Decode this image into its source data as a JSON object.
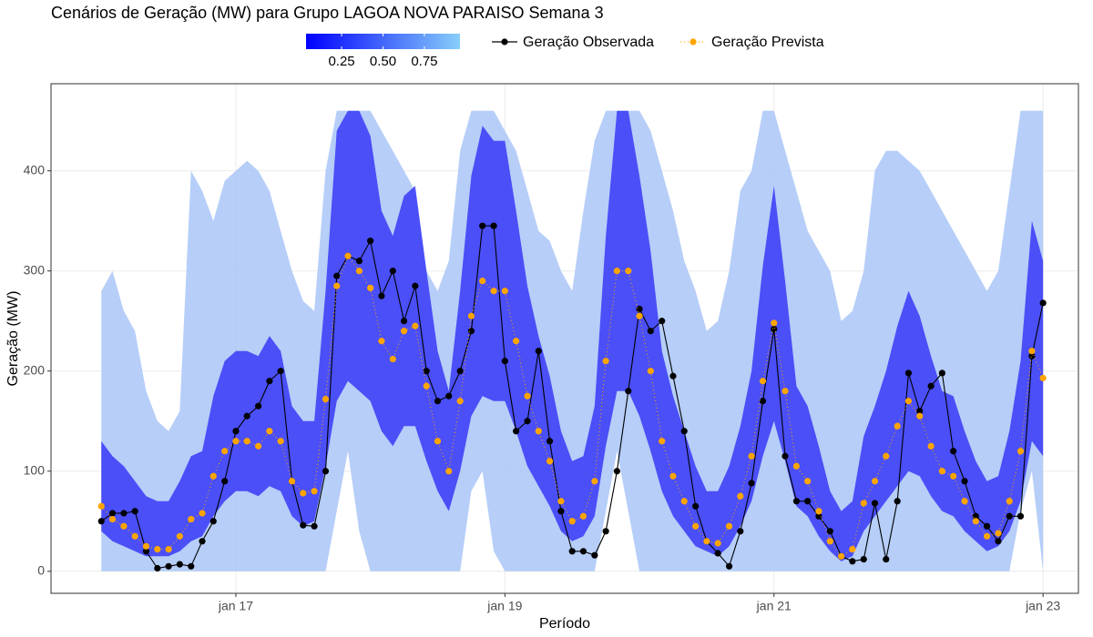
{
  "chart_data": {
    "type": "line",
    "title": "Cenários de Geração (MW) para Grupo LAGOA NOVA PARAISO Semana 3",
    "x_label": "Período",
    "y_label": "Geração (MW)",
    "xlim": [
      15.626,
      23.263
    ],
    "ylim": [
      -22,
      487
    ],
    "xticks": [
      {
        "value": 17,
        "label": "jan 17"
      },
      {
        "value": 19,
        "label": "jan 19"
      },
      {
        "value": 21,
        "label": "jan 21"
      },
      {
        "value": 23,
        "label": "jan 23"
      }
    ],
    "yticks": [
      0,
      100,
      200,
      300,
      400
    ],
    "grid": true,
    "legend": "top",
    "colorbar": {
      "lim": [
        0.035,
        0.965
      ],
      "ticks": [
        0.25,
        {
          "value": 0.5,
          "label": "0.50"
        },
        0.75
      ],
      "colors": [
        "#0000ff",
        "#87cefa"
      ]
    },
    "x": [
      16,
      16.083,
      16.167,
      16.25,
      16.333,
      16.417,
      16.5,
      16.583,
      16.667,
      16.75,
      16.833,
      16.917,
      17,
      17.083,
      17.167,
      17.25,
      17.333,
      17.417,
      17.5,
      17.583,
      17.667,
      17.75,
      17.833,
      17.917,
      18,
      18.083,
      18.167,
      18.25,
      18.333,
      18.417,
      18.5,
      18.583,
      18.667,
      18.75,
      18.833,
      18.917,
      19,
      19.083,
      19.167,
      19.25,
      19.333,
      19.417,
      19.5,
      19.583,
      19.667,
      19.75,
      19.833,
      19.917,
      20,
      20.083,
      20.167,
      20.25,
      20.333,
      20.417,
      20.5,
      20.583,
      20.667,
      20.75,
      20.833,
      20.917,
      21,
      21.083,
      21.167,
      21.25,
      21.333,
      21.417,
      21.5,
      21.583,
      21.667,
      21.75,
      21.833,
      21.917,
      22,
      22.083,
      22.167,
      22.25,
      22.333,
      22.417,
      22.5,
      22.583,
      22.667,
      22.75,
      22.833,
      22.917,
      23
    ],
    "bands": [
      {
        "color": "#a9c6f7",
        "lower": [
          0,
          0,
          0,
          0,
          0,
          0,
          0,
          0,
          0,
          0,
          0,
          0,
          0,
          0,
          0,
          0,
          0,
          0,
          0,
          0,
          0,
          60,
          120,
          40,
          0,
          0,
          0,
          0,
          0,
          0,
          0,
          0,
          0,
          80,
          100,
          20,
          0,
          0,
          0,
          0,
          0,
          0,
          0,
          0,
          0,
          60,
          120,
          60,
          0,
          0,
          0,
          0,
          0,
          0,
          0,
          0,
          0,
          0,
          0,
          0,
          0,
          0,
          0,
          0,
          0,
          0,
          0,
          0,
          0,
          0,
          0,
          0,
          0,
          0,
          0,
          0,
          0,
          0,
          0,
          0,
          0,
          0,
          60,
          100,
          0
        ],
        "upper": [
          280,
          300,
          260,
          240,
          180,
          150,
          140,
          160,
          400,
          380,
          350,
          390,
          400,
          410,
          400,
          380,
          340,
          300,
          270,
          260,
          400,
          460,
          460,
          460,
          460,
          440,
          420,
          400,
          380,
          300,
          280,
          310,
          420,
          460,
          460,
          460,
          440,
          420,
          380,
          340,
          330,
          300,
          280,
          360,
          430,
          460,
          460,
          460,
          460,
          440,
          400,
          360,
          310,
          280,
          240,
          250,
          300,
          380,
          400,
          460,
          460,
          420,
          380,
          340,
          320,
          300,
          250,
          260,
          300,
          400,
          420,
          420,
          410,
          400,
          380,
          360,
          340,
          320,
          300,
          280,
          300,
          380,
          460,
          460,
          460
        ]
      },
      {
        "color": "#2f2ff8",
        "lower": [
          40,
          30,
          25,
          20,
          15,
          15,
          15,
          20,
          30,
          35,
          55,
          70,
          80,
          80,
          75,
          85,
          80,
          55,
          45,
          50,
          105,
          170,
          190,
          180,
          170,
          140,
          125,
          145,
          145,
          110,
          80,
          60,
          100,
          155,
          175,
          170,
          170,
          140,
          105,
          85,
          65,
          40,
          30,
          35,
          55,
          125,
          180,
          180,
          155,
          120,
          80,
          55,
          40,
          25,
          20,
          15,
          25,
          45,
          70,
          115,
          150,
          110,
          65,
          55,
          35,
          20,
          10,
          15,
          40,
          55,
          70,
          85,
          100,
          95,
          75,
          60,
          55,
          40,
          30,
          20,
          25,
          40,
          70,
          130,
          115
        ],
        "upper": [
          130,
          115,
          105,
          90,
          75,
          70,
          70,
          90,
          115,
          120,
          175,
          210,
          220,
          220,
          215,
          235,
          220,
          165,
          150,
          150,
          280,
          440,
          460,
          460,
          435,
          360,
          335,
          375,
          385,
          300,
          220,
          180,
          280,
          395,
          445,
          430,
          430,
          360,
          285,
          235,
          195,
          140,
          110,
          115,
          165,
          335,
          460,
          460,
          395,
          320,
          220,
          175,
          140,
          105,
          80,
          80,
          105,
          145,
          200,
          305,
          385,
          290,
          185,
          165,
          125,
          80,
          60,
          70,
          135,
          165,
          200,
          245,
          280,
          255,
          215,
          180,
          175,
          140,
          110,
          90,
          95,
          140,
          210,
          350,
          310
        ]
      }
    ],
    "series": [
      {
        "name": "Geração Observada",
        "color": "#000000",
        "style": "solid",
        "values": [
          50,
          58,
          58,
          60,
          20,
          3,
          5,
          7,
          5,
          30,
          50,
          90,
          140,
          155,
          165,
          190,
          200,
          90,
          46,
          45,
          100,
          295,
          315,
          310,
          330,
          275,
          300,
          250,
          285,
          200,
          170,
          175,
          200,
          240,
          345,
          345,
          210,
          140,
          150,
          220,
          130,
          60,
          20,
          20,
          16,
          40,
          100,
          180,
          262,
          240,
          250,
          195,
          140,
          65,
          30,
          18,
          5,
          40,
          88,
          170,
          242,
          115,
          70,
          70,
          55,
          40,
          15,
          10,
          12,
          68,
          12,
          70,
          198,
          160,
          185,
          198,
          120,
          90,
          55,
          45,
          30,
          55,
          55,
          215,
          268
        ]
      },
      {
        "name": "Geração Prevista",
        "color": "#ffa500",
        "style": "dotted",
        "values": [
          65,
          52,
          45,
          35,
          25,
          22,
          22,
          35,
          52,
          58,
          95,
          120,
          130,
          130,
          125,
          140,
          130,
          90,
          78,
          80,
          172,
          285,
          315,
          300,
          283,
          230,
          212,
          240,
          245,
          185,
          130,
          100,
          170,
          255,
          290,
          280,
          280,
          230,
          175,
          140,
          110,
          70,
          50,
          55,
          90,
          210,
          300,
          300,
          255,
          200,
          130,
          95,
          70,
          45,
          30,
          28,
          45,
          75,
          115,
          190,
          248,
          180,
          105,
          90,
          60,
          30,
          15,
          22,
          68,
          90,
          115,
          145,
          170,
          155,
          125,
          100,
          95,
          70,
          50,
          35,
          38,
          70,
          120,
          220,
          193
        ]
      }
    ]
  }
}
